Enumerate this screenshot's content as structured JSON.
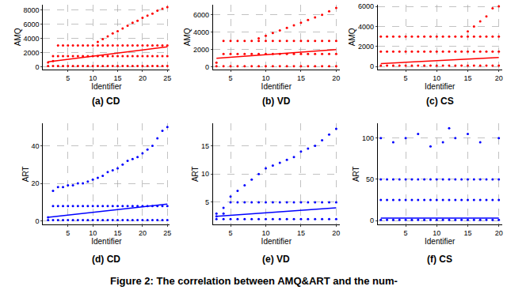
{
  "caption": "Figure 2: The correlation between AMQ&ART and the num-",
  "chart_data": [
    {
      "type": "scatter",
      "title": "(a) CD",
      "x_label": "Identifier",
      "y_label": "AMQ",
      "xlim": [
        0,
        25.5
      ],
      "ylim": [
        -400,
        8800
      ],
      "xticks": [
        5,
        10,
        15,
        20,
        25
      ],
      "yticks": [
        0,
        2000,
        4000,
        6000,
        8000
      ],
      "grid": true,
      "series": [
        {
          "type": "scatter",
          "marker": "circle",
          "color": "#ff0000",
          "x": [
            1,
            1,
            2,
            2,
            2,
            3,
            3,
            3,
            4,
            4,
            4,
            5,
            5,
            5,
            6,
            6,
            6,
            7,
            7,
            7,
            8,
            8,
            8,
            9,
            9,
            9,
            10,
            10,
            10,
            11,
            11,
            11,
            11,
            12,
            12,
            12,
            12,
            13,
            13,
            13,
            13,
            14,
            14,
            14,
            14,
            15,
            15,
            15,
            15,
            16,
            16,
            16,
            16,
            17,
            17,
            17,
            17,
            18,
            18,
            18,
            18,
            19,
            19,
            19,
            19,
            20,
            20,
            20,
            20,
            21,
            21,
            21,
            21,
            22,
            22,
            22,
            22,
            23,
            23,
            23,
            23,
            24,
            24,
            24,
            24,
            25,
            25,
            25,
            25
          ],
          "values": [
            100,
            600,
            100,
            800,
            1500,
            100,
            1500,
            3000,
            100,
            1500,
            3000,
            100,
            1500,
            3000,
            100,
            1500,
            3000,
            100,
            1500,
            3000,
            100,
            1500,
            3000,
            100,
            1500,
            3000,
            100,
            1500,
            3000,
            100,
            1500,
            3000,
            3500,
            100,
            1500,
            3000,
            3900,
            100,
            1500,
            3000,
            4300,
            100,
            1500,
            3000,
            4700,
            100,
            1500,
            3000,
            5000,
            100,
            1500,
            3000,
            5400,
            100,
            1500,
            3000,
            5800,
            100,
            1500,
            3000,
            6200,
            100,
            1500,
            3000,
            6500,
            100,
            1500,
            3000,
            6900,
            100,
            1500,
            3000,
            7200,
            100,
            1500,
            3000,
            7500,
            100,
            1500,
            3000,
            7900,
            100,
            1500,
            3000,
            8200,
            100,
            1500,
            3000,
            8400
          ]
        },
        {
          "type": "line",
          "line_style": "solid",
          "color": "#ff0000",
          "x": [
            1,
            25
          ],
          "values": [
            700,
            2800
          ]
        }
      ]
    },
    {
      "type": "scatter",
      "title": "(b) VD",
      "x_label": "Identifier",
      "y_label": "AMQ",
      "xlim": [
        2.5,
        20.5
      ],
      "ylim": [
        -300,
        7200
      ],
      "xticks": [
        5,
        10,
        15,
        20
      ],
      "yticks": [
        0,
        2000,
        4000,
        6000
      ],
      "grid": true,
      "series": [
        {
          "type": "scatter",
          "marker": "circle",
          "color": "#ff0000",
          "x": [
            3,
            3,
            4,
            4,
            4,
            5,
            5,
            5,
            6,
            6,
            6,
            7,
            7,
            7,
            8,
            8,
            8,
            9,
            9,
            9,
            9,
            10,
            10,
            10,
            10,
            11,
            11,
            11,
            11,
            12,
            12,
            12,
            12,
            13,
            13,
            13,
            13,
            14,
            14,
            14,
            14,
            15,
            15,
            15,
            15,
            16,
            16,
            16,
            16,
            17,
            17,
            17,
            17,
            18,
            18,
            18,
            18,
            19,
            19,
            19,
            19,
            20,
            20,
            20,
            20
          ],
          "values": [
            100,
            500,
            100,
            1500,
            3000,
            100,
            1500,
            3000,
            100,
            1500,
            3000,
            100,
            1500,
            3000,
            100,
            1500,
            3000,
            100,
            1500,
            3000,
            3300,
            100,
            1500,
            3000,
            3600,
            100,
            1500,
            3000,
            3900,
            100,
            1500,
            3000,
            4200,
            100,
            1500,
            3000,
            4500,
            100,
            1500,
            3000,
            4800,
            100,
            1500,
            3000,
            5100,
            100,
            1500,
            3000,
            5400,
            100,
            1500,
            3000,
            5700,
            100,
            1500,
            3000,
            6000,
            100,
            1500,
            3000,
            6400,
            100,
            1500,
            3000,
            6800
          ]
        },
        {
          "type": "line",
          "line_style": "solid",
          "color": "#ff0000",
          "x": [
            3,
            20
          ],
          "values": [
            1000,
            2000
          ]
        }
      ]
    },
    {
      "type": "scatter",
      "title": "(c) CS",
      "x_label": "Identifier",
      "y_label": "AMQ",
      "xlim": [
        0.5,
        20.5
      ],
      "ylim": [
        -300,
        6200
      ],
      "xticks": [
        5,
        10,
        15,
        20
      ],
      "yticks": [
        0,
        2000,
        4000,
        6000
      ],
      "grid": true,
      "series": [
        {
          "type": "scatter",
          "marker": "circle",
          "color": "#ff0000",
          "x": [
            1,
            1,
            1,
            2,
            2,
            2,
            3,
            3,
            3,
            4,
            4,
            4,
            5,
            5,
            5,
            6,
            6,
            6,
            7,
            7,
            7,
            8,
            8,
            8,
            9,
            9,
            9,
            10,
            10,
            10,
            11,
            11,
            11,
            12,
            12,
            12,
            13,
            13,
            13,
            14,
            14,
            14,
            15,
            15,
            15,
            15,
            16,
            16,
            16,
            16,
            17,
            17,
            17,
            17,
            18,
            18,
            18,
            18,
            19,
            19,
            19,
            19,
            20,
            20,
            20,
            20
          ],
          "values": [
            100,
            1500,
            3000,
            100,
            1500,
            3000,
            100,
            1500,
            3000,
            100,
            1500,
            3000,
            100,
            1500,
            3000,
            100,
            1500,
            3000,
            100,
            1500,
            3000,
            100,
            1500,
            3000,
            100,
            1500,
            3000,
            100,
            1500,
            3000,
            100,
            1500,
            3000,
            100,
            1500,
            3000,
            100,
            1500,
            3000,
            100,
            1500,
            3000,
            100,
            1500,
            3000,
            3500,
            100,
            1500,
            3000,
            4000,
            100,
            1500,
            3000,
            4500,
            100,
            1500,
            3000,
            5000,
            100,
            1500,
            3000,
            5800,
            100,
            1500,
            3000,
            6000
          ]
        },
        {
          "type": "line",
          "line_style": "solid",
          "color": "#ff0000",
          "x": [
            1,
            20
          ],
          "values": [
            300,
            900
          ]
        }
      ]
    },
    {
      "type": "scatter",
      "title": "(d) CD",
      "x_label": "Identifier",
      "y_label": "ART",
      "xlim": [
        0,
        25.5
      ],
      "ylim": [
        -2,
        52
      ],
      "xticks": [
        5,
        10,
        15,
        20,
        25
      ],
      "yticks": [
        0,
        20,
        40
      ],
      "grid": true,
      "series": [
        {
          "type": "scatter",
          "marker": "circle",
          "color": "#0000ff",
          "x": [
            1,
            1,
            2,
            2,
            2,
            3,
            3,
            3,
            4,
            4,
            4,
            5,
            5,
            5,
            6,
            6,
            6,
            7,
            7,
            7,
            8,
            8,
            8,
            9,
            9,
            9,
            10,
            10,
            10,
            11,
            11,
            11,
            12,
            12,
            12,
            13,
            13,
            13,
            14,
            14,
            14,
            15,
            15,
            15,
            16,
            16,
            16,
            17,
            17,
            17,
            18,
            18,
            18,
            19,
            19,
            19,
            20,
            20,
            20,
            21,
            21,
            21,
            22,
            22,
            22,
            23,
            23,
            23,
            24,
            24,
            24,
            25,
            25,
            25
          ],
          "values": [
            0.5,
            2,
            0.5,
            8,
            16,
            0.5,
            8,
            18,
            0.5,
            8,
            18,
            0.5,
            8,
            19,
            0.5,
            8,
            19,
            0.5,
            8,
            20,
            0.5,
            8,
            20,
            0.5,
            8,
            21,
            0.5,
            8,
            22,
            0.5,
            8,
            23,
            0.5,
            8,
            24,
            0.5,
            8,
            26,
            0.5,
            8,
            27,
            0.5,
            8,
            28,
            0.5,
            8,
            30,
            0.5,
            8,
            32,
            0.5,
            8,
            33,
            0.5,
            8,
            34,
            0.5,
            8,
            36,
            0.5,
            8,
            38,
            0.5,
            8,
            40,
            0.5,
            8,
            44,
            0.5,
            8,
            48,
            0.5,
            8,
            50
          ]
        },
        {
          "type": "line",
          "line_style": "solid",
          "color": "#0000ff",
          "x": [
            1,
            25
          ],
          "values": [
            2,
            9
          ]
        }
      ]
    },
    {
      "type": "scatter",
      "title": "(e) VD",
      "x_label": "Identifier",
      "y_label": "ART",
      "xlim": [
        2.5,
        20.5
      ],
      "ylim": [
        1,
        19
      ],
      "xticks": [
        5,
        10,
        15,
        20
      ],
      "yticks": [
        5,
        10,
        15
      ],
      "grid": true,
      "series": [
        {
          "type": "scatter",
          "marker": "circle",
          "color": "#0000ff",
          "x": [
            3,
            3,
            3,
            4,
            4,
            4,
            5,
            5,
            5,
            6,
            6,
            6,
            7,
            7,
            7,
            8,
            8,
            8,
            9,
            9,
            9,
            10,
            10,
            10,
            11,
            11,
            11,
            12,
            12,
            12,
            13,
            13,
            13,
            14,
            14,
            14,
            15,
            15,
            15,
            16,
            16,
            16,
            17,
            17,
            17,
            18,
            18,
            18,
            19,
            19,
            19,
            20,
            20,
            20
          ],
          "values": [
            2,
            2.5,
            3,
            2,
            3,
            4,
            2,
            5,
            6,
            2,
            5,
            7,
            2,
            5,
            8,
            2,
            5,
            9,
            2,
            5,
            10,
            2,
            5,
            11,
            2,
            5,
            11.5,
            2,
            5,
            12,
            2,
            5,
            12.5,
            2,
            5,
            13,
            2,
            5,
            14,
            2,
            5,
            14.5,
            2,
            5,
            15,
            2,
            5,
            16,
            2,
            5,
            17,
            2,
            5,
            18
          ]
        },
        {
          "type": "line",
          "line_style": "solid",
          "color": "#0000ff",
          "x": [
            3,
            20
          ],
          "values": [
            2.5,
            4
          ]
        }
      ]
    },
    {
      "type": "scatter",
      "title": "(f) CS",
      "x_label": "Identifier",
      "y_label": "ART",
      "xlim": [
        0.5,
        20.5
      ],
      "ylim": [
        -5,
        118
      ],
      "xticks": [
        5,
        10,
        15,
        20
      ],
      "yticks": [
        0,
        50,
        100
      ],
      "grid": true,
      "series": [
        {
          "type": "scatter",
          "marker": "circle",
          "color": "#0000ff",
          "x": [
            1,
            1,
            1,
            2,
            2,
            2,
            3,
            3,
            3,
            4,
            4,
            4,
            5,
            5,
            5,
            6,
            6,
            6,
            7,
            7,
            7,
            8,
            8,
            8,
            9,
            9,
            9,
            10,
            10,
            10,
            11,
            11,
            11,
            12,
            12,
            12,
            13,
            13,
            13,
            14,
            14,
            14,
            15,
            15,
            15,
            16,
            16,
            16,
            17,
            17,
            17,
            18,
            18,
            18,
            19,
            19,
            19,
            20,
            20,
            20,
            1,
            3,
            5,
            7,
            9,
            11,
            12,
            13,
            15,
            17,
            20
          ],
          "values": [
            1,
            25,
            50,
            1,
            25,
            50,
            1,
            25,
            50,
            1,
            25,
            50,
            1,
            25,
            50,
            1,
            25,
            50,
            1,
            25,
            50,
            1,
            25,
            50,
            1,
            25,
            50,
            1,
            25,
            50,
            1,
            25,
            50,
            1,
            25,
            50,
            1,
            25,
            50,
            1,
            25,
            50,
            1,
            25,
            50,
            1,
            25,
            50,
            1,
            25,
            50,
            1,
            25,
            50,
            1,
            25,
            50,
            1,
            25,
            50,
            100,
            95,
            100,
            105,
            90,
            95,
            112,
            100,
            105,
            95,
            100
          ]
        },
        {
          "type": "line",
          "line_style": "solid",
          "color": "#0000ff",
          "x": [
            1,
            20
          ],
          "values": [
            3,
            3
          ]
        }
      ]
    }
  ]
}
